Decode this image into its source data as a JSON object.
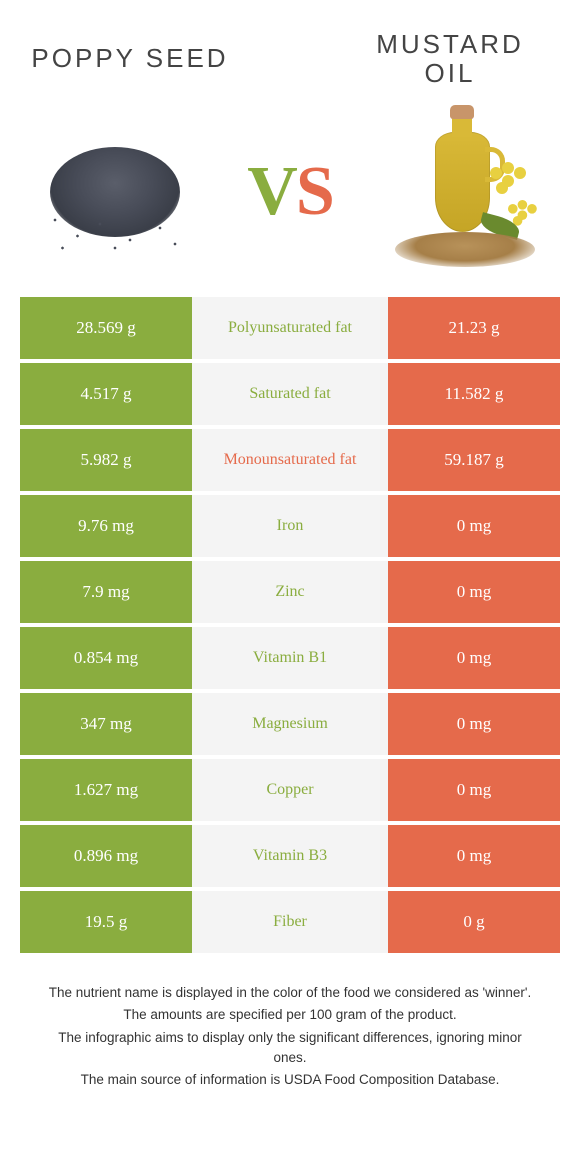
{
  "header": {
    "left_title": "POPPY SEED",
    "right_title_line1": "MUSTARD",
    "right_title_line2": "OIL",
    "vs_v": "V",
    "vs_s": "S"
  },
  "colors": {
    "left": "#8aad3f",
    "right": "#e56a4b",
    "mid_bg": "#f4f4f4"
  },
  "rows": [
    {
      "nutrient": "Polyunsaturated fat",
      "left": "28.569 g",
      "right": "21.23 g",
      "winner": "left"
    },
    {
      "nutrient": "Saturated fat",
      "left": "4.517 g",
      "right": "11.582 g",
      "winner": "left"
    },
    {
      "nutrient": "Monounsaturated fat",
      "left": "5.982 g",
      "right": "59.187 g",
      "winner": "right"
    },
    {
      "nutrient": "Iron",
      "left": "9.76 mg",
      "right": "0 mg",
      "winner": "left"
    },
    {
      "nutrient": "Zinc",
      "left": "7.9 mg",
      "right": "0 mg",
      "winner": "left"
    },
    {
      "nutrient": "Vitamin B1",
      "left": "0.854 mg",
      "right": "0 mg",
      "winner": "left"
    },
    {
      "nutrient": "Magnesium",
      "left": "347 mg",
      "right": "0 mg",
      "winner": "left"
    },
    {
      "nutrient": "Copper",
      "left": "1.627 mg",
      "right": "0 mg",
      "winner": "left"
    },
    {
      "nutrient": "Vitamin B3",
      "left": "0.896 mg",
      "right": "0 mg",
      "winner": "left"
    },
    {
      "nutrient": "Fiber",
      "left": "19.5 g",
      "right": "0 g",
      "winner": "left"
    }
  ],
  "footnotes": {
    "l1": "The nutrient name is displayed in the color of the food we considered as 'winner'.",
    "l2": "The amounts are specified per 100 gram of the product.",
    "l3": "The infographic aims to display only the significant differences, ignoring minor ones.",
    "l4": "The main source of information is USDA Food Composition Database."
  }
}
